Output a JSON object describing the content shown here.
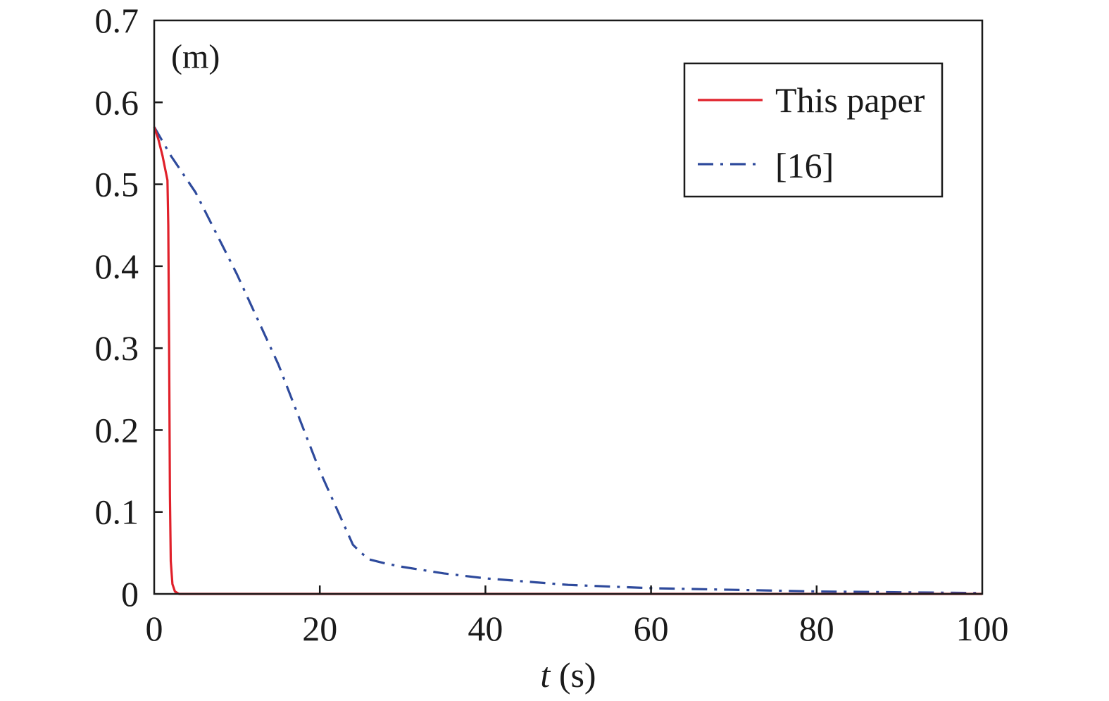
{
  "chart_data": {
    "type": "line",
    "panel_label": "(m)",
    "xlabel_var": "t",
    "xlabel_unit": " (s)",
    "ylabel": "",
    "xlim": [
      0,
      100
    ],
    "ylim": [
      0,
      0.7
    ],
    "x_ticks": [
      0,
      20,
      40,
      60,
      80,
      100
    ],
    "x_tick_labels": [
      "0",
      "20",
      "40",
      "60",
      "80",
      "100"
    ],
    "y_ticks": [
      0,
      0.1,
      0.2,
      0.3,
      0.4,
      0.5,
      0.6,
      0.7
    ],
    "y_tick_labels": [
      "0",
      "0.1",
      "0.2",
      "0.3",
      "0.4",
      "0.5",
      "0.6",
      "0.7"
    ],
    "grid": false,
    "legend_position": "top-right",
    "series": [
      {
        "name": "This paper",
        "color": "#e0202a",
        "style": "solid",
        "x": [
          0,
          0.5,
          1.0,
          1.4,
          1.6,
          1.7,
          1.8,
          1.9,
          2.0,
          2.2,
          2.5,
          3.0,
          5,
          20,
          40,
          60,
          80,
          100
        ],
        "y": [
          0.57,
          0.555,
          0.535,
          0.515,
          0.505,
          0.45,
          0.3,
          0.12,
          0.04,
          0.012,
          0.003,
          0.0,
          0.0,
          0.0,
          0.0,
          0.0,
          0.0,
          0.0
        ]
      },
      {
        "name": "[16]",
        "color": "#2e4a9c",
        "style": "dashdot",
        "x": [
          0,
          2,
          5,
          10,
          15,
          20,
          24,
          25,
          26,
          28,
          30,
          35,
          40,
          50,
          60,
          70,
          80,
          90,
          100
        ],
        "y": [
          0.57,
          0.535,
          0.49,
          0.39,
          0.28,
          0.15,
          0.06,
          0.05,
          0.042,
          0.037,
          0.033,
          0.025,
          0.019,
          0.011,
          0.007,
          0.005,
          0.003,
          0.002,
          0.001
        ]
      }
    ]
  }
}
